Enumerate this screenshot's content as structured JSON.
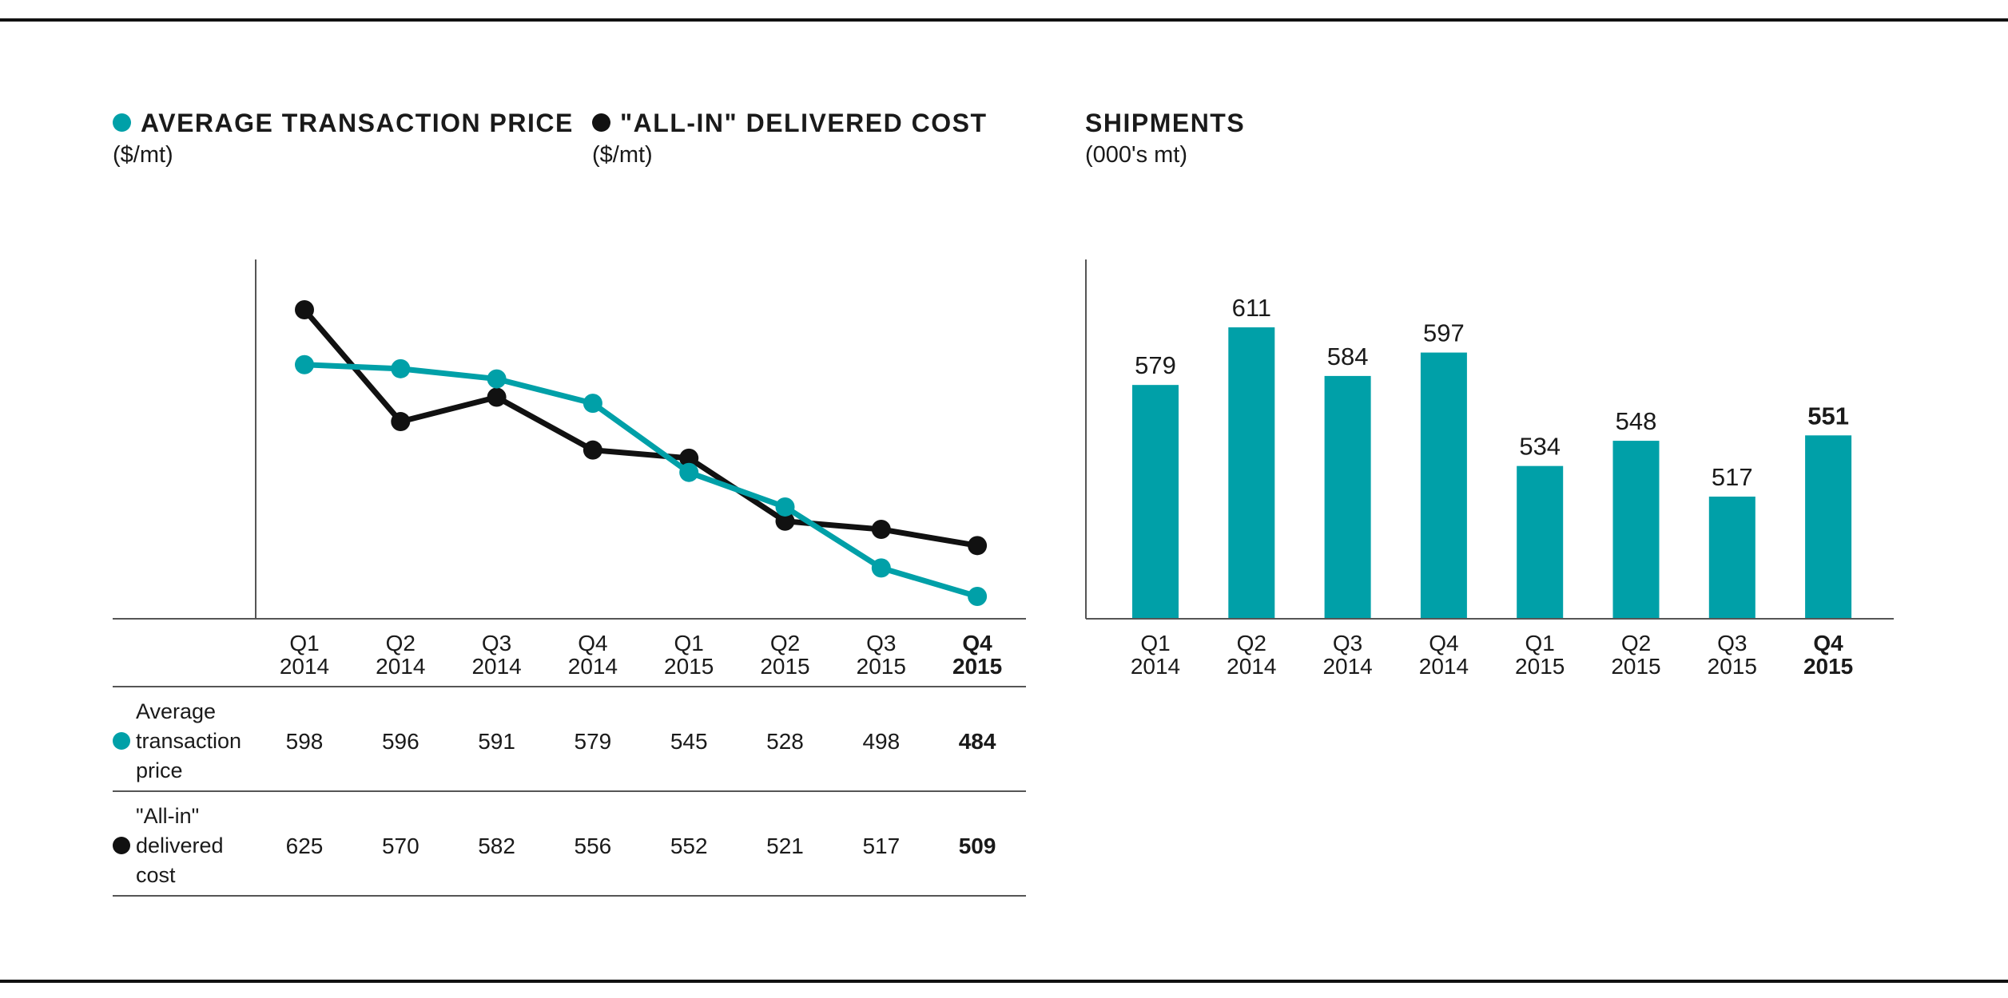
{
  "colors": {
    "teal": "#00a0a8",
    "black": "#111111"
  },
  "legend": {
    "price": {
      "title": "AVERAGE TRANSACTION PRICE",
      "unit": "($/mt)",
      "icon": "teal-dot-icon"
    },
    "cost": {
      "title": "\"ALL-IN\" DELIVERED COST",
      "unit": "($/mt)",
      "icon": "black-dot-icon"
    },
    "shipments": {
      "title": "SHIPMENTS",
      "unit": "(000's mt)"
    }
  },
  "table": {
    "rows": [
      {
        "label_lines": [
          "Average",
          "transaction",
          "price"
        ],
        "icon": "teal-dot-icon",
        "values": [
          "598",
          "596",
          "591",
          "579",
          "545",
          "528",
          "498",
          "484"
        ]
      },
      {
        "label_lines": [
          "\"All-in\"",
          "delivered",
          "cost"
        ],
        "icon": "black-dot-icon",
        "values": [
          "625",
          "570",
          "582",
          "556",
          "552",
          "521",
          "517",
          "509"
        ]
      }
    ]
  },
  "chart_data": [
    {
      "type": "line",
      "categories": [
        [
          "Q1",
          "2014"
        ],
        [
          "Q2",
          "2014"
        ],
        [
          "Q3",
          "2014"
        ],
        [
          "Q4",
          "2014"
        ],
        [
          "Q1",
          "2015"
        ],
        [
          "Q2",
          "2015"
        ],
        [
          "Q3",
          "2015"
        ],
        [
          "Q4",
          "2015"
        ]
      ],
      "highlight_last": true,
      "series": [
        {
          "name": "Average transaction price",
          "color": "#00a0a8",
          "values": [
            598,
            596,
            591,
            579,
            545,
            528,
            498,
            484
          ]
        },
        {
          "name": "\"All-in\" delivered cost",
          "color": "#111111",
          "values": [
            625,
            570,
            582,
            556,
            552,
            521,
            517,
            509
          ]
        }
      ],
      "title": "",
      "xlabel": "",
      "ylabel": "",
      "ylim": [
        450,
        650
      ],
      "grid": false
    },
    {
      "type": "bar",
      "categories": [
        [
          "Q1",
          "2014"
        ],
        [
          "Q2",
          "2014"
        ],
        [
          "Q3",
          "2014"
        ],
        [
          "Q4",
          "2014"
        ],
        [
          "Q1",
          "2015"
        ],
        [
          "Q2",
          "2015"
        ],
        [
          "Q3",
          "2015"
        ],
        [
          "Q4",
          "2015"
        ]
      ],
      "values": [
        579,
        611,
        584,
        597,
        534,
        548,
        517,
        551
      ],
      "color": "#00a0a8",
      "highlight_last": true,
      "title": "",
      "xlabel": "",
      "ylabel": "",
      "ylim": [
        420,
        640
      ],
      "grid": false
    }
  ]
}
